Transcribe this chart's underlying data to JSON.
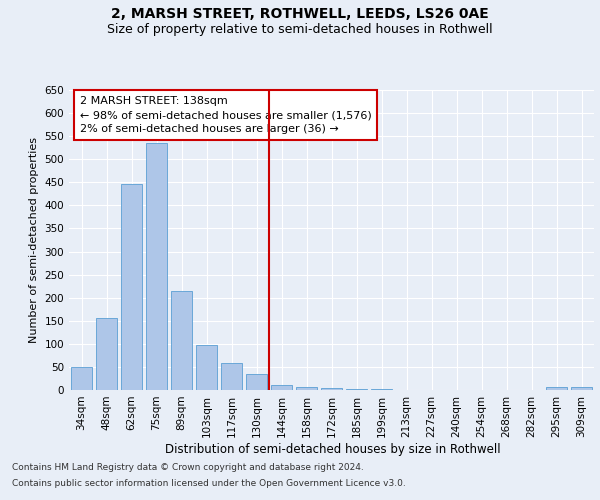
{
  "title1": "2, MARSH STREET, ROTHWELL, LEEDS, LS26 0AE",
  "title2": "Size of property relative to semi-detached houses in Rothwell",
  "xlabel": "Distribution of semi-detached houses by size in Rothwell",
  "ylabel": "Number of semi-detached properties",
  "footer1": "Contains HM Land Registry data © Crown copyright and database right 2024.",
  "footer2": "Contains public sector information licensed under the Open Government Licence v3.0.",
  "categories": [
    "34sqm",
    "48sqm",
    "62sqm",
    "75sqm",
    "89sqm",
    "103sqm",
    "117sqm",
    "130sqm",
    "144sqm",
    "158sqm",
    "172sqm",
    "185sqm",
    "199sqm",
    "213sqm",
    "227sqm",
    "240sqm",
    "254sqm",
    "268sqm",
    "282sqm",
    "295sqm",
    "309sqm"
  ],
  "values": [
    50,
    155,
    447,
    535,
    215,
    98,
    58,
    35,
    10,
    7,
    4,
    3,
    2,
    1,
    0,
    0,
    0,
    0,
    0,
    7,
    7
  ],
  "bar_color": "#aec6e8",
  "bar_edge_color": "#5a9fd4",
  "annotation_title": "2 MARSH STREET: 138sqm",
  "annotation_line1": "← 98% of semi-detached houses are smaller (1,576)",
  "annotation_line2": "2% of semi-detached houses are larger (36) →",
  "ylim": [
    0,
    650
  ],
  "yticks": [
    0,
    50,
    100,
    150,
    200,
    250,
    300,
    350,
    400,
    450,
    500,
    550,
    600,
    650
  ],
  "bg_color": "#e8eef7",
  "plot_bg_color": "#e8eef7",
  "annotation_box_color": "#ffffff",
  "annotation_box_edge": "#cc0000",
  "vline_color": "#cc0000",
  "title1_fontsize": 10,
  "title2_fontsize": 9,
  "xlabel_fontsize": 8.5,
  "ylabel_fontsize": 8,
  "tick_fontsize": 7.5,
  "annotation_fontsize": 8,
  "footer_fontsize": 6.5
}
